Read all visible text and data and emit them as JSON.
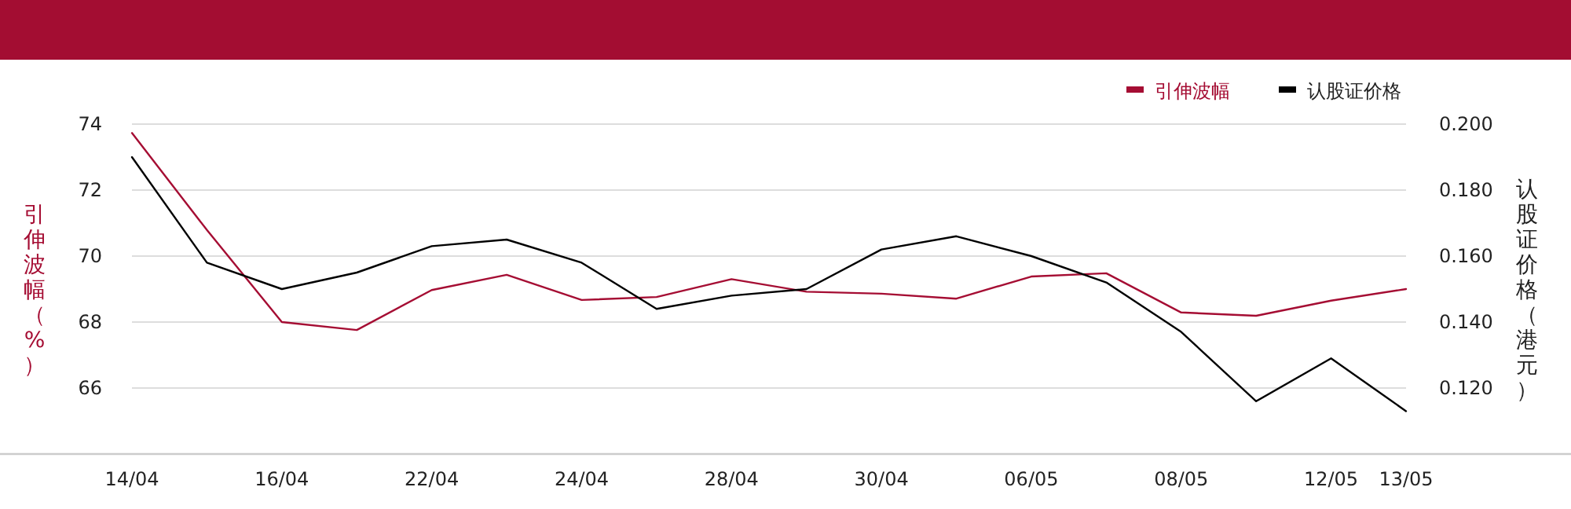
{
  "chart_data": {
    "type": "line",
    "ylabel": "引伸波幅（%）",
    "y2label": "认股证价格（港元）",
    "categories": [
      "14/04",
      null,
      "16/04",
      null,
      "22/04",
      null,
      "24/04",
      null,
      "28/04",
      null,
      "30/04",
      null,
      "06/05",
      null,
      "08/05",
      null,
      "12/05",
      "13/05"
    ],
    "series": [
      {
        "name": "引伸波幅",
        "color": "#a50d33",
        "values": [
          73.73,
          70.79,
          68.0,
          67.76,
          68.97,
          69.43,
          68.67,
          68.76,
          69.3,
          68.92,
          68.86,
          68.71,
          69.38,
          69.48,
          68.29,
          68.19,
          68.65,
          69.0
        ]
      },
      {
        "name": "认股证价格",
        "color": "#000000",
        "axis": "y2",
        "values": [
          0.19,
          0.158,
          0.15,
          0.155,
          0.163,
          0.165,
          0.158,
          0.144,
          0.148,
          0.15,
          0.162,
          0.166,
          0.16,
          0.152,
          0.137,
          0.116,
          0.129,
          0.113
        ]
      }
    ],
    "ylim": [
      64,
      74
    ],
    "yticks": [
      66,
      68,
      70,
      72,
      74
    ],
    "y2lim": [
      0.1,
      0.2
    ],
    "y2ticks": [
      {
        "value": 0.12,
        "label": "0.120"
      },
      {
        "value": 0.14,
        "label": "0.140"
      },
      {
        "value": 0.16,
        "label": "0.160"
      },
      {
        "value": 0.18,
        "label": "0.180"
      },
      {
        "value": 0.2,
        "label": "0.200"
      }
    ],
    "grid": "y",
    "legend": "top right",
    "marker": "none",
    "line_style": "solid"
  }
}
